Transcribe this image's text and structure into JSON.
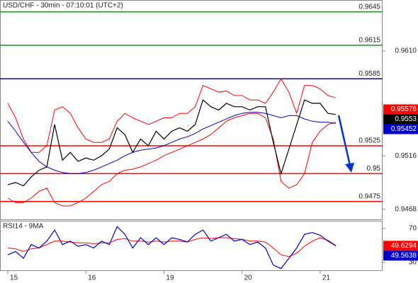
{
  "chart_data": [
    {
      "type": "line",
      "title": "USD/CHF - 30min - 07:10:01 (UTC+2)",
      "x": [
        0,
        1,
        2,
        3,
        4,
        5,
        6,
        7,
        8,
        9,
        10,
        11,
        12,
        13,
        14,
        15,
        16,
        17,
        18,
        19,
        20,
        21,
        22,
        23,
        24,
        25,
        26,
        27,
        28,
        29,
        30,
        31,
        32,
        33,
        34,
        35,
        36,
        37,
        38,
        39,
        40,
        41,
        42
      ],
      "xlim": [
        -1,
        48
      ],
      "ylim": [
        0.9459,
        0.9655
      ],
      "yticks": [
        {
          "value": 0.961,
          "label": "0.9610"
        },
        0.9516,
        0.9468
      ],
      "series": [
        {
          "color": "#ff0000",
          "values": [
            0.9563,
            0.955,
            0.9531,
            0.9519,
            0.9519,
            0.9525,
            0.9557,
            0.956,
            0.9554,
            0.9541,
            0.9531,
            0.9528,
            0.9528,
            0.9531,
            0.9547,
            0.9554,
            0.955,
            0.9547,
            0.9544,
            0.9547,
            0.955,
            0.955,
            0.9554,
            0.9554,
            0.956,
            0.9579,
            0.9576,
            0.9573,
            0.9574,
            0.957,
            0.957,
            0.9566,
            0.9566,
            0.9563,
            0.9573,
            0.9585,
            0.9573,
            0.9554,
            0.9579,
            0.9579,
            0.9576,
            0.957,
            0.9568
          ]
        },
        {
          "color": "#ff0000",
          "values": [
            0.9478,
            0.9474,
            0.9474,
            0.9478,
            0.9484,
            0.9487,
            0.9474,
            0.9471,
            0.9471,
            0.9474,
            0.9478,
            0.9484,
            0.949,
            0.9493,
            0.95,
            0.9503,
            0.9504,
            0.9506,
            0.9509,
            0.9512,
            0.9516,
            0.9519,
            0.9522,
            0.9525,
            0.9528,
            0.9531,
            0.9535,
            0.9541,
            0.9547,
            0.955,
            0.9552,
            0.9554,
            0.9554,
            0.955,
            0.9531,
            0.9493,
            0.9487,
            0.949,
            0.95,
            0.9528,
            0.9538,
            0.9544,
            0.9546
          ]
        },
        {
          "color": "#0000cc",
          "values": [
            0.9547,
            0.9538,
            0.9528,
            0.9519,
            0.9511,
            0.9506,
            0.9503,
            0.9501,
            0.95,
            0.95,
            0.9501,
            0.9503,
            0.9506,
            0.9509,
            0.9512,
            0.9516,
            0.9519,
            0.9521,
            0.9522,
            0.9523,
            0.9525,
            0.9528,
            0.9531,
            0.9533,
            0.9536,
            0.954,
            0.9543,
            0.9546,
            0.9549,
            0.9552,
            0.9554,
            0.9555,
            0.9555,
            0.9554,
            0.9552,
            0.955,
            0.9552,
            0.9552,
            0.9549,
            0.9547,
            0.9546,
            0.9546,
            0.9545
          ]
        },
        {
          "color": "#000000",
          "values": [
            0.949,
            0.9492,
            0.9489,
            0.9497,
            0.9503,
            0.9506,
            0.9544,
            0.9512,
            0.9519,
            0.9511,
            0.9514,
            0.9512,
            0.9516,
            0.9522,
            0.9541,
            0.9535,
            0.9519,
            0.9531,
            0.9525,
            0.9538,
            0.9531,
            0.9538,
            0.9541,
            0.9538,
            0.9544,
            0.9566,
            0.956,
            0.9557,
            0.9563,
            0.956,
            0.956,
            0.9557,
            0.956,
            0.956,
            0.9528,
            0.95,
            0.9522,
            0.9544,
            0.9566,
            0.9563,
            0.9563,
            0.9554,
            0.9553
          ]
        }
      ],
      "levels": [
        {
          "value": 0.9645,
          "color": "#228b22"
        },
        {
          "value": 0.9615,
          "color": "#228b22"
        },
        {
          "value": 0.9585,
          "color": "#000099"
        },
        {
          "value": 0.9525,
          "color": "#ff0000"
        },
        {
          "value": 0.95,
          "color": "#ff0000"
        },
        {
          "value": 0.9475,
          "color": "#ff0000"
        }
      ],
      "last_marks": [
        {
          "value": 0.95576,
          "color": "#ff0000"
        },
        {
          "value": 0.9553,
          "color": "#000000"
        },
        {
          "value": 0.95452,
          "color": "#0000cc"
        }
      ]
    },
    {
      "type": "line",
      "title": "RSI14 - 9MA",
      "x": [
        0,
        1,
        2,
        3,
        4,
        5,
        6,
        7,
        8,
        9,
        10,
        11,
        12,
        13,
        14,
        15,
        16,
        17,
        18,
        19,
        20,
        21,
        22,
        23,
        24,
        25,
        26,
        27,
        28,
        29,
        30,
        31,
        32,
        33,
        34,
        35,
        36,
        37,
        38,
        39,
        40,
        41,
        42
      ],
      "xlim": [
        -1,
        48
      ],
      "xticks": [
        {
          "value": 0,
          "label": "15"
        },
        {
          "value": 10,
          "label": "16"
        },
        {
          "value": 20,
          "label": "19"
        },
        {
          "value": 30,
          "label": "20"
        },
        {
          "value": 40,
          "label": "21"
        }
      ],
      "ylim": [
        21,
        78
      ],
      "yticks": [
        70,
        30
      ],
      "series": [
        {
          "color": "#ff0000",
          "values": [
            47,
            46,
            43,
            46,
            47,
            51,
            55,
            55,
            54,
            53,
            53,
            52,
            53,
            53,
            57,
            58,
            55,
            55,
            54,
            55,
            54,
            55,
            55,
            54,
            57,
            59,
            58,
            59,
            59,
            58,
            57,
            55,
            55,
            54,
            47,
            39,
            37,
            41,
            49,
            55,
            59,
            56,
            50
          ]
        },
        {
          "color": "#0000cc",
          "values": [
            39,
            43,
            35,
            51,
            47,
            55,
            68,
            51,
            55,
            49,
            51,
            47,
            55,
            51,
            72,
            63,
            47,
            59,
            51,
            59,
            51,
            59,
            57,
            54,
            63,
            68,
            55,
            59,
            63,
            55,
            57,
            51,
            54,
            47,
            27,
            23,
            35,
            47,
            63,
            65,
            62,
            55,
            49.6
          ]
        }
      ],
      "last_marks": [
        {
          "value": 49.6294,
          "color": "#ff0000"
        },
        {
          "value": 49.5638,
          "color": "#0000cc"
        }
      ]
    }
  ]
}
